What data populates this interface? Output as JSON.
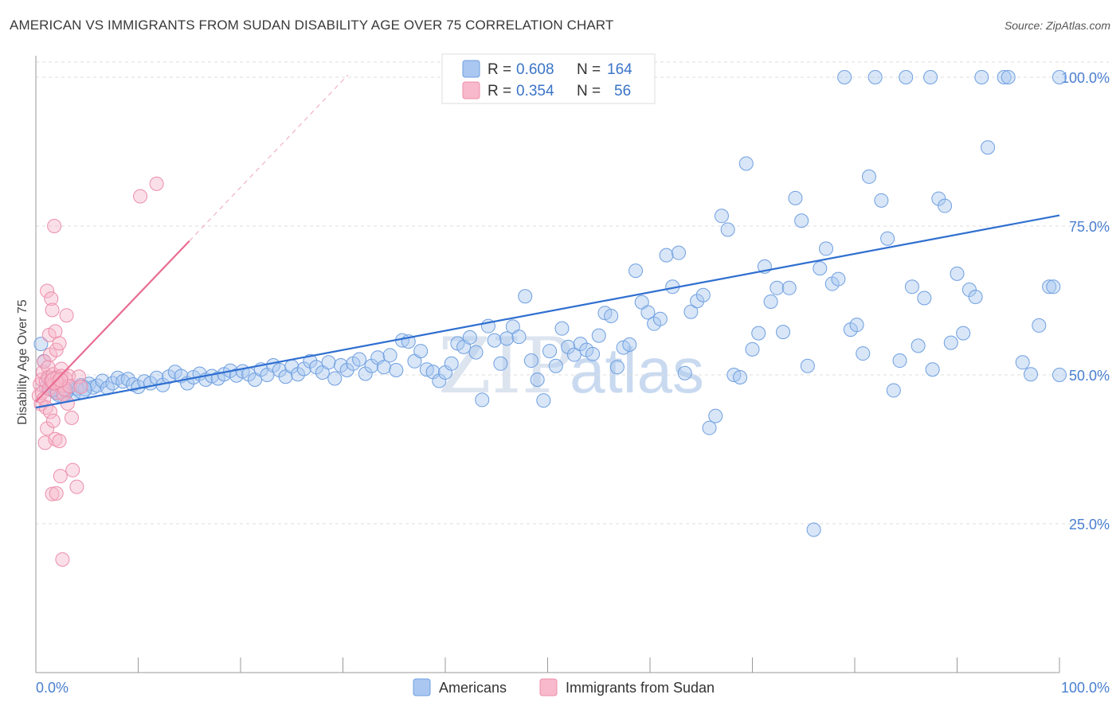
{
  "title": "AMERICAN VS IMMIGRANTS FROM SUDAN DISABILITY AGE OVER 75 CORRELATION CHART",
  "source": "Source: ZipAtlas.com",
  "watermark": {
    "part1": "ZIP",
    "part2": "atlas"
  },
  "colors": {
    "blue_fill": "#a9c7f0",
    "blue_stroke": "#6f9fe0",
    "blue_line": "#2f6fd0",
    "pink_fill": "#f7b9cb",
    "pink_stroke": "#ec8eaa",
    "pink_line": "#e86c92",
    "grid": "#dddddd",
    "tick_text": "#4a7fd0"
  },
  "legend": {
    "rows": [
      {
        "r_label": "R =",
        "r_value": "0.608",
        "n_label": "N =",
        "n_value": "164"
      },
      {
        "r_label": "R =",
        "r_value": "0.354",
        "n_label": "N =",
        "n_value": "56"
      }
    ]
  },
  "bottom_legend": [
    "Americans",
    "Immigrants from Sudan"
  ],
  "chart_data": {
    "type": "scatter",
    "title": "AMERICAN VS IMMIGRANTS FROM SUDAN DISABILITY AGE OVER 75 CORRELATION CHART",
    "xlabel": "",
    "ylabel": "Disability Age Over 75",
    "xlim": [
      0,
      100
    ],
    "ylim": [
      0,
      102
    ],
    "x_tick_labels": [
      "0.0%",
      "100.0%"
    ],
    "y_tick_labels": [
      "25.0%",
      "50.0%",
      "75.0%",
      "100.0%"
    ],
    "y_ticks": [
      25,
      50,
      75,
      100
    ],
    "grid": true,
    "legend_position": "top-center",
    "series": [
      {
        "name": "Americans",
        "R": 0.608,
        "N": 164,
        "trend": {
          "x": [
            0,
            100
          ],
          "y": [
            44.5,
            76.8
          ]
        },
        "points": [
          [
            0.5,
            55.2
          ],
          [
            0.8,
            52.3
          ],
          [
            1.0,
            47.9
          ],
          [
            1.2,
            49.5
          ],
          [
            1.5,
            48.2
          ],
          [
            1.7,
            47.5
          ],
          [
            2.0,
            47.0
          ],
          [
            2.3,
            48.1
          ],
          [
            2.6,
            46.5
          ],
          [
            3.0,
            47.2
          ],
          [
            3.3,
            48.0
          ],
          [
            3.7,
            46.8
          ],
          [
            4.0,
            47.7
          ],
          [
            4.4,
            48.3
          ],
          [
            4.8,
            47.6
          ],
          [
            5.2,
            48.5
          ],
          [
            5.6,
            47.9
          ],
          [
            6.0,
            48.2
          ],
          [
            6.5,
            49.0
          ],
          [
            7.0,
            47.8
          ],
          [
            7.5,
            48.6
          ],
          [
            8.0,
            49.5
          ],
          [
            8.5,
            48.9
          ],
          [
            9.0,
            49.3
          ],
          [
            9.5,
            48.4
          ],
          [
            10.0,
            48.0
          ],
          [
            10.6,
            48.9
          ],
          [
            11.2,
            48.6
          ],
          [
            11.8,
            49.5
          ],
          [
            12.4,
            48.3
          ],
          [
            13.0,
            49.7
          ],
          [
            13.6,
            50.5
          ],
          [
            14.2,
            49.8
          ],
          [
            14.8,
            48.6
          ],
          [
            15.4,
            49.6
          ],
          [
            16.0,
            50.2
          ],
          [
            16.6,
            49.2
          ],
          [
            17.2,
            49.8
          ],
          [
            17.8,
            49.4
          ],
          [
            18.4,
            50.1
          ],
          [
            19.0,
            50.7
          ],
          [
            19.6,
            49.9
          ],
          [
            20.2,
            50.6
          ],
          [
            20.8,
            50.1
          ],
          [
            21.4,
            49.2
          ],
          [
            22.0,
            50.9
          ],
          [
            22.6,
            50.0
          ],
          [
            23.2,
            51.6
          ],
          [
            23.8,
            50.8
          ],
          [
            24.4,
            49.7
          ],
          [
            25.0,
            51.4
          ],
          [
            25.6,
            50.1
          ],
          [
            26.2,
            51.0
          ],
          [
            26.8,
            52.3
          ],
          [
            27.4,
            51.3
          ],
          [
            28.0,
            50.4
          ],
          [
            28.6,
            52.1
          ],
          [
            29.2,
            49.4
          ],
          [
            29.8,
            51.6
          ],
          [
            30.4,
            50.8
          ],
          [
            31.0,
            51.9
          ],
          [
            31.6,
            52.6
          ],
          [
            32.2,
            50.2
          ],
          [
            32.8,
            51.5
          ],
          [
            33.4,
            52.9
          ],
          [
            34.0,
            51.3
          ],
          [
            34.6,
            53.3
          ],
          [
            35.2,
            50.8
          ],
          [
            35.8,
            55.8
          ],
          [
            36.4,
            55.6
          ],
          [
            37.0,
            52.3
          ],
          [
            37.6,
            54.0
          ],
          [
            38.2,
            50.9
          ],
          [
            38.8,
            50.5
          ],
          [
            39.4,
            49.0
          ],
          [
            40.0,
            50.4
          ],
          [
            40.6,
            51.9
          ],
          [
            41.2,
            55.3
          ],
          [
            41.8,
            54.7
          ],
          [
            42.4,
            56.3
          ],
          [
            43.0,
            53.8
          ],
          [
            43.6,
            45.8
          ],
          [
            44.2,
            58.2
          ],
          [
            44.8,
            55.8
          ],
          [
            45.4,
            51.9
          ],
          [
            46.0,
            56.1
          ],
          [
            46.6,
            58.1
          ],
          [
            47.2,
            56.4
          ],
          [
            47.8,
            63.2
          ],
          [
            48.4,
            52.4
          ],
          [
            49.0,
            49.2
          ],
          [
            49.6,
            45.7
          ],
          [
            50.2,
            54.0
          ],
          [
            50.8,
            51.5
          ],
          [
            51.4,
            57.8
          ],
          [
            52.0,
            54.7
          ],
          [
            52.6,
            53.4
          ],
          [
            53.2,
            55.2
          ],
          [
            53.8,
            54.2
          ],
          [
            54.4,
            53.5
          ],
          [
            55.0,
            56.6
          ],
          [
            55.6,
            60.4
          ],
          [
            56.2,
            59.9
          ],
          [
            56.8,
            51.3
          ],
          [
            57.4,
            54.6
          ],
          [
            58.0,
            55.1
          ],
          [
            58.6,
            67.5
          ],
          [
            59.2,
            62.2
          ],
          [
            59.8,
            60.5
          ],
          [
            60.4,
            58.6
          ],
          [
            61.0,
            59.4
          ],
          [
            61.6,
            70.1
          ],
          [
            62.2,
            64.8
          ],
          [
            62.8,
            70.5
          ],
          [
            63.4,
            50.3
          ],
          [
            64.0,
            60.6
          ],
          [
            64.6,
            62.4
          ],
          [
            65.2,
            63.4
          ],
          [
            65.8,
            41.1
          ],
          [
            66.4,
            43.1
          ],
          [
            67.0,
            76.7
          ],
          [
            67.6,
            74.4
          ],
          [
            68.2,
            50.0
          ],
          [
            68.8,
            49.6
          ],
          [
            69.4,
            85.5
          ],
          [
            70.0,
            54.3
          ],
          [
            70.6,
            57.0
          ],
          [
            71.2,
            68.2
          ],
          [
            71.8,
            62.3
          ],
          [
            72.4,
            64.6
          ],
          [
            73.0,
            57.2
          ],
          [
            73.6,
            64.6
          ],
          [
            74.2,
            79.7
          ],
          [
            74.8,
            75.9
          ],
          [
            75.4,
            51.5
          ],
          [
            76.0,
            24.0
          ],
          [
            76.6,
            67.9
          ],
          [
            77.2,
            71.2
          ],
          [
            77.8,
            65.3
          ],
          [
            78.4,
            66.1
          ],
          [
            79.0,
            100.0
          ],
          [
            79.6,
            57.6
          ],
          [
            80.2,
            58.4
          ],
          [
            80.8,
            53.6
          ],
          [
            81.4,
            83.3
          ],
          [
            82.0,
            100.0
          ],
          [
            82.6,
            79.3
          ],
          [
            83.2,
            72.9
          ],
          [
            83.8,
            47.4
          ],
          [
            84.4,
            52.4
          ],
          [
            85.0,
            100.0
          ],
          [
            85.6,
            64.8
          ],
          [
            86.2,
            54.9
          ],
          [
            86.8,
            62.9
          ],
          [
            87.4,
            100.0
          ],
          [
            87.6,
            50.9
          ],
          [
            88.2,
            79.6
          ],
          [
            88.8,
            78.4
          ],
          [
            89.4,
            55.4
          ],
          [
            90.0,
            67.0
          ],
          [
            90.6,
            57.0
          ],
          [
            91.2,
            64.3
          ],
          [
            91.8,
            63.1
          ],
          [
            92.4,
            100.0
          ],
          [
            93.0,
            88.2
          ],
          [
            94.6,
            100.0
          ],
          [
            95.0,
            100.0
          ],
          [
            96.4,
            52.1
          ],
          [
            97.2,
            50.1
          ],
          [
            98.0,
            58.3
          ],
          [
            99.0,
            64.8
          ],
          [
            99.4,
            64.8
          ],
          [
            100.0,
            100.0
          ],
          [
            100.0,
            50.0
          ]
        ]
      },
      {
        "name": "Immigrants from Sudan",
        "R": 0.354,
        "N": 56,
        "trend": {
          "x": [
            0,
            15
          ],
          "y": [
            45.5,
            72.5
          ]
        },
        "points": [
          [
            0.3,
            46.5
          ],
          [
            0.4,
            48.4
          ],
          [
            0.5,
            45.1
          ],
          [
            0.6,
            49.2
          ],
          [
            0.6,
            47.0
          ],
          [
            0.7,
            50.5
          ],
          [
            0.8,
            46.0
          ],
          [
            0.8,
            52.2
          ],
          [
            0.9,
            38.6
          ],
          [
            1.0,
            48.9
          ],
          [
            1.0,
            44.5
          ],
          [
            1.1,
            64.1
          ],
          [
            1.1,
            41.0
          ],
          [
            1.2,
            51.3
          ],
          [
            1.2,
            49.6
          ],
          [
            1.3,
            47.7
          ],
          [
            1.3,
            56.7
          ],
          [
            1.4,
            53.4
          ],
          [
            1.4,
            43.8
          ],
          [
            1.5,
            62.8
          ],
          [
            1.5,
            49.0
          ],
          [
            1.6,
            30.0
          ],
          [
            1.6,
            60.9
          ],
          [
            1.7,
            50.1
          ],
          [
            1.7,
            42.3
          ],
          [
            1.8,
            75.0
          ],
          [
            1.8,
            48.5
          ],
          [
            1.9,
            39.2
          ],
          [
            1.9,
            57.3
          ],
          [
            2.0,
            54.2
          ],
          [
            2.0,
            30.1
          ],
          [
            2.1,
            49.6
          ],
          [
            2.1,
            47.0
          ],
          [
            2.2,
            49.0
          ],
          [
            2.3,
            38.9
          ],
          [
            2.3,
            55.3
          ],
          [
            2.4,
            33.0
          ],
          [
            2.4,
            48.4
          ],
          [
            2.5,
            51.0
          ],
          [
            2.5,
            49.8
          ],
          [
            2.6,
            19.0
          ],
          [
            2.6,
            48.2
          ],
          [
            2.7,
            46.8
          ],
          [
            2.8,
            47.6
          ],
          [
            2.9,
            49.4
          ],
          [
            3.0,
            60.0
          ],
          [
            3.1,
            45.2
          ],
          [
            3.2,
            49.8
          ],
          [
            3.3,
            48.1
          ],
          [
            3.5,
            42.8
          ],
          [
            3.6,
            34.0
          ],
          [
            4.0,
            31.2
          ],
          [
            4.2,
            49.7
          ],
          [
            4.4,
            48.0
          ],
          [
            10.2,
            80.0
          ],
          [
            11.8,
            82.1
          ]
        ]
      }
    ]
  }
}
